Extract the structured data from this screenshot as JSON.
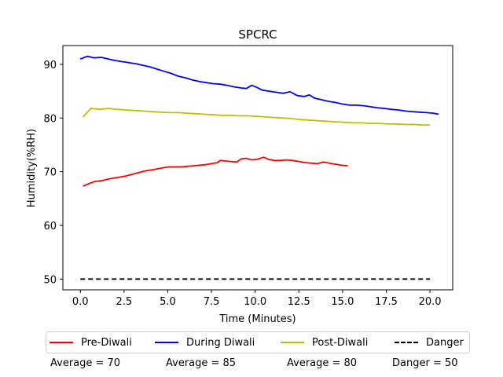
{
  "chart_data": {
    "type": "line",
    "title": "SPCRC",
    "xlabel": "Time (Minutes)",
    "ylabel": "Humidity(%RH)",
    "xlim": [
      -1.0,
      21.3
    ],
    "ylim": [
      48,
      93.5
    ],
    "xticks": [
      0.0,
      2.5,
      5.0,
      7.5,
      10.0,
      12.5,
      15.0,
      17.5,
      20.0
    ],
    "xtick_labels": [
      "0.0",
      "2.5",
      "5.0",
      "7.5",
      "10.0",
      "12.5",
      "15.0",
      "17.5",
      "20.0"
    ],
    "yticks": [
      50,
      60,
      70,
      80,
      90
    ],
    "ytick_labels": [
      "50",
      "60",
      "70",
      "80",
      "90"
    ],
    "grid": false,
    "legend_position": "bottom",
    "series": [
      {
        "name": "Pre-Diwali",
        "color": "#ff0000",
        "style": "solid",
        "x": [
          0.15,
          0.5,
          0.85,
          1.2,
          1.55,
          1.9,
          2.25,
          2.6,
          2.95,
          3.3,
          3.65,
          4.0,
          4.35,
          4.7,
          5.05,
          5.4,
          5.75,
          6.1,
          6.45,
          6.8,
          7.15,
          7.5,
          7.85,
          8.0,
          8.3,
          8.6,
          8.95,
          9.2,
          9.5,
          9.8,
          10.1,
          10.5,
          10.75,
          11.1,
          11.45,
          11.8,
          12.15,
          12.5,
          12.85,
          13.2,
          13.55,
          13.9,
          14.25,
          14.6,
          14.95,
          15.3
        ],
        "y": [
          67.3,
          67.8,
          68.2,
          68.3,
          68.6,
          68.8,
          69.0,
          69.2,
          69.5,
          69.8,
          70.1,
          70.3,
          70.5,
          70.7,
          70.9,
          70.9,
          70.9,
          71.0,
          71.1,
          71.2,
          71.3,
          71.5,
          71.7,
          72.1,
          72.0,
          71.9,
          71.8,
          72.4,
          72.5,
          72.2,
          72.3,
          72.7,
          72.3,
          72.1,
          72.1,
          72.2,
          72.1,
          71.9,
          71.7,
          71.6,
          71.5,
          71.8,
          71.6,
          71.4,
          71.2,
          71.1
        ]
      },
      {
        "name": "During Diwali",
        "color": "#0000ff",
        "style": "solid",
        "x": [
          0.0,
          0.4,
          0.8,
          1.2,
          1.6,
          2.0,
          2.4,
          2.8,
          3.2,
          3.6,
          4.0,
          4.4,
          4.8,
          5.2,
          5.6,
          6.0,
          6.4,
          6.8,
          7.2,
          7.6,
          8.0,
          8.4,
          8.8,
          9.2,
          9.5,
          9.8,
          10.1,
          10.4,
          10.8,
          11.2,
          11.6,
          12.0,
          12.4,
          12.8,
          13.1,
          13.4,
          13.8,
          14.2,
          14.6,
          15.0,
          15.4,
          15.8,
          16.2,
          16.6,
          17.0,
          17.4,
          17.8,
          18.2,
          18.6,
          19.0,
          19.4,
          19.8,
          20.2,
          20.5
        ],
        "y": [
          91.0,
          91.5,
          91.2,
          91.3,
          91.0,
          90.7,
          90.5,
          90.3,
          90.1,
          89.8,
          89.5,
          89.1,
          88.7,
          88.3,
          87.8,
          87.5,
          87.1,
          86.8,
          86.6,
          86.4,
          86.3,
          86.1,
          85.8,
          85.6,
          85.5,
          86.1,
          85.7,
          85.2,
          85.0,
          84.8,
          84.6,
          84.9,
          84.2,
          84.0,
          84.3,
          83.7,
          83.4,
          83.1,
          82.9,
          82.6,
          82.4,
          82.4,
          82.3,
          82.1,
          81.9,
          81.8,
          81.6,
          81.5,
          81.3,
          81.2,
          81.1,
          81.0,
          80.9,
          80.7
        ]
      },
      {
        "name": "Post-Diwali",
        "color": "#bfbf00",
        "style": "solid",
        "x": [
          0.15,
          0.6,
          1.1,
          1.6,
          2.1,
          2.6,
          3.1,
          3.6,
          4.1,
          4.6,
          5.1,
          5.6,
          6.1,
          6.6,
          7.1,
          7.6,
          8.1,
          8.6,
          9.1,
          9.6,
          10.1,
          10.6,
          11.1,
          11.6,
          12.1,
          12.6,
          13.1,
          13.6,
          14.1,
          14.6,
          15.1,
          15.6,
          16.1,
          16.6,
          17.1,
          17.6,
          18.1,
          18.6,
          19.1,
          19.6,
          20.0
        ],
        "y": [
          80.2,
          81.8,
          81.6,
          81.8,
          81.6,
          81.5,
          81.4,
          81.3,
          81.2,
          81.1,
          81.0,
          81.0,
          80.9,
          80.8,
          80.7,
          80.6,
          80.5,
          80.5,
          80.4,
          80.4,
          80.3,
          80.2,
          80.1,
          80.0,
          79.9,
          79.7,
          79.6,
          79.5,
          79.4,
          79.3,
          79.2,
          79.1,
          79.1,
          79.0,
          79.0,
          78.9,
          78.9,
          78.8,
          78.8,
          78.7,
          78.7
        ]
      },
      {
        "name": "Danger",
        "color": "#000000",
        "style": "dashed",
        "x": [
          0.0,
          20.0
        ],
        "y": [
          50,
          50
        ]
      }
    ]
  },
  "averages": [
    {
      "label": "Average = 70"
    },
    {
      "label": "Average = 85"
    },
    {
      "label": "Average = 80"
    },
    {
      "label": "Danger = 50"
    }
  ]
}
